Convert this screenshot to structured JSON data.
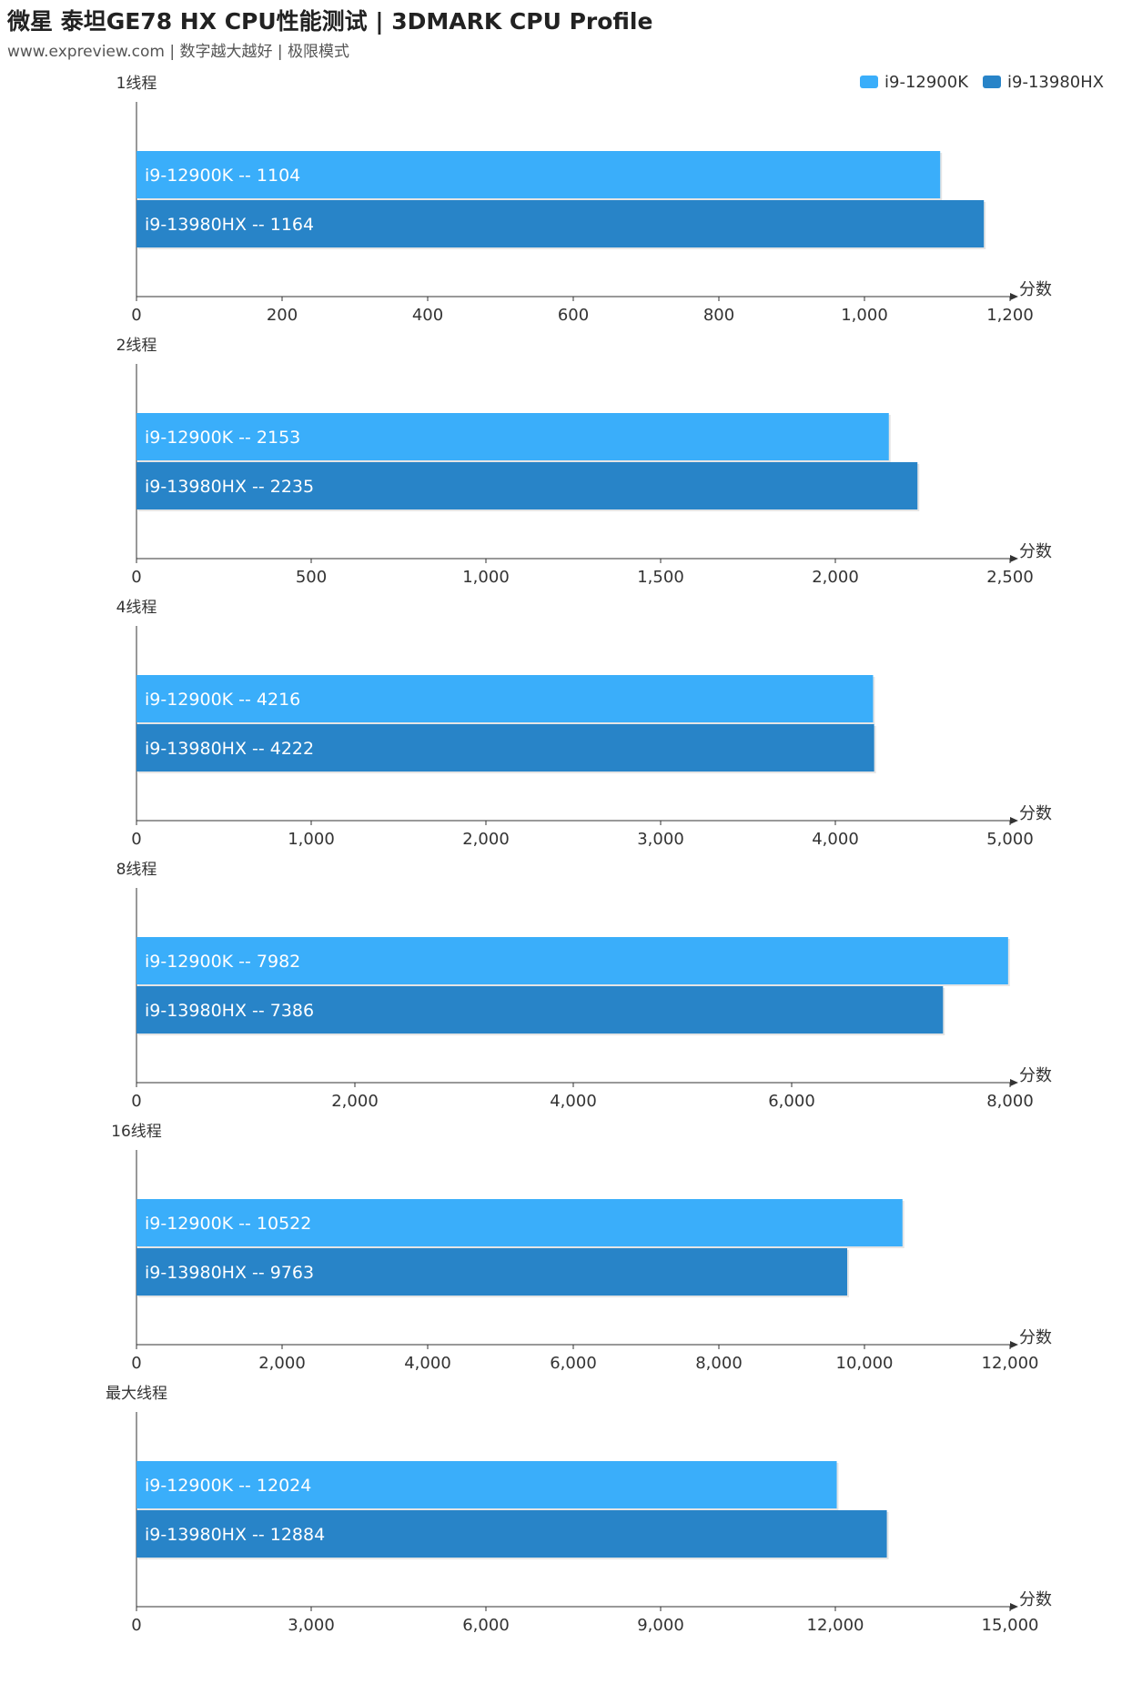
{
  "header": {
    "title": "微星 泰坦GE78 HX CPU性能测试 | 3DMARK CPU Profile",
    "subtitle": "www.expreview.com | 数字越大越好 | 极限模式"
  },
  "legend": [
    {
      "name": "i9-12900K",
      "color": "#3aaefa"
    },
    {
      "name": "i9-13980HX",
      "color": "#2884c8"
    }
  ],
  "chart_data": [
    {
      "type": "bar",
      "orientation": "horizontal",
      "title": "1线程",
      "xlabel": "分数",
      "xlim": [
        0,
        1200
      ],
      "ticks": [
        "0",
        "200",
        "400",
        "600",
        "800",
        "1,000",
        "1,200"
      ],
      "series": [
        {
          "name": "i9-12900K",
          "value": 1104,
          "label": "i9-12900K  --  1104"
        },
        {
          "name": "i9-13980HX",
          "value": 1164,
          "label": "i9-13980HX  --  1164"
        }
      ]
    },
    {
      "type": "bar",
      "orientation": "horizontal",
      "title": "2线程",
      "xlabel": "分数",
      "xlim": [
        0,
        2500
      ],
      "ticks": [
        "0",
        "500",
        "1,000",
        "1,500",
        "2,000",
        "2,500"
      ],
      "series": [
        {
          "name": "i9-12900K",
          "value": 2153,
          "label": "i9-12900K  --  2153"
        },
        {
          "name": "i9-13980HX",
          "value": 2235,
          "label": "i9-13980HX  --  2235"
        }
      ]
    },
    {
      "type": "bar",
      "orientation": "horizontal",
      "title": "4线程",
      "xlabel": "分数",
      "xlim": [
        0,
        5000
      ],
      "ticks": [
        "0",
        "1,000",
        "2,000",
        "3,000",
        "4,000",
        "5,000"
      ],
      "series": [
        {
          "name": "i9-12900K",
          "value": 4216,
          "label": "i9-12900K  --  4216"
        },
        {
          "name": "i9-13980HX",
          "value": 4222,
          "label": "i9-13980HX  --  4222"
        }
      ]
    },
    {
      "type": "bar",
      "orientation": "horizontal",
      "title": "8线程",
      "xlabel": "分数",
      "xlim": [
        0,
        8000
      ],
      "ticks": [
        "0",
        "2,000",
        "4,000",
        "6,000",
        "8,000"
      ],
      "series": [
        {
          "name": "i9-12900K",
          "value": 7982,
          "label": "i9-12900K  --  7982"
        },
        {
          "name": "i9-13980HX",
          "value": 7386,
          "label": "i9-13980HX  --  7386"
        }
      ]
    },
    {
      "type": "bar",
      "orientation": "horizontal",
      "title": "16线程",
      "xlabel": "分数",
      "xlim": [
        0,
        12000
      ],
      "ticks": [
        "0",
        "2,000",
        "4,000",
        "6,000",
        "8,000",
        "10,000",
        "12,000"
      ],
      "series": [
        {
          "name": "i9-12900K",
          "value": 10522,
          "label": "i9-12900K  --  10522"
        },
        {
          "name": "i9-13980HX",
          "value": 9763,
          "label": "i9-13980HX  --  9763"
        }
      ]
    },
    {
      "type": "bar",
      "orientation": "horizontal",
      "title": "最大线程",
      "xlabel": "分数",
      "xlim": [
        0,
        15000
      ],
      "ticks": [
        "0",
        "3,000",
        "6,000",
        "9,000",
        "12,000",
        "15,000"
      ],
      "series": [
        {
          "name": "i9-12900K",
          "value": 12024,
          "label": "i9-12900K  --  12024"
        },
        {
          "name": "i9-13980HX",
          "value": 12884,
          "label": "i9-13980HX  --  12884"
        }
      ]
    }
  ]
}
